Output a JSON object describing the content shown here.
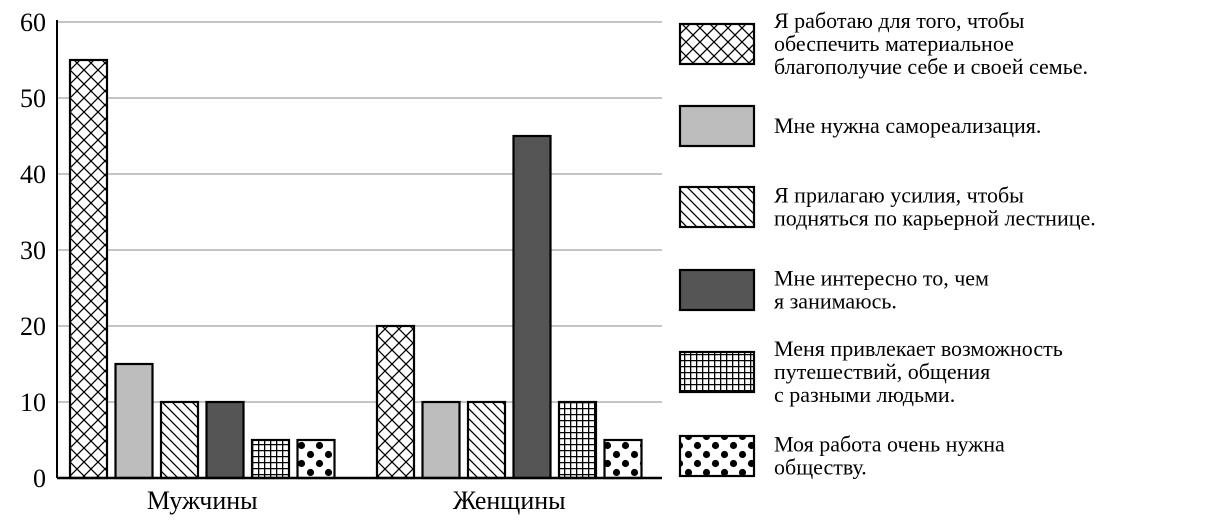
{
  "chart_data": {
    "type": "bar",
    "title": "",
    "xlabel": "",
    "ylabel": "",
    "ylim": [
      0,
      60
    ],
    "yticks": [
      0,
      10,
      20,
      30,
      40,
      50,
      60
    ],
    "grid": true,
    "legend_position": "right",
    "categories": [
      "Мужчины",
      "Женщины"
    ],
    "series": [
      {
        "name": "Я работаю для того, чтобы обеспечить материальное благополучие себе и своей семье.",
        "values": [
          55,
          20
        ],
        "pattern": "crosshatch",
        "color": "#ffffff"
      },
      {
        "name": "Мне нужна самореализация.",
        "values": [
          15,
          10
        ],
        "pattern": "solid",
        "color": "#bdbdbd"
      },
      {
        "name": "Я прилагаю усилия, чтобы подняться по карьерной лестнице.",
        "values": [
          10,
          10
        ],
        "pattern": "diagonal",
        "color": "#ffffff"
      },
      {
        "name": "Мне интересно то, чем я занимаюсь.",
        "values": [
          10,
          45
        ],
        "pattern": "solid",
        "color": "#555555"
      },
      {
        "name": "Меня привлекает возможность путешествий, общения с разными людьми.",
        "values": [
          5,
          10
        ],
        "pattern": "grid",
        "color": "#000000"
      },
      {
        "name": "Моя работа очень нужна обществу.",
        "values": [
          5,
          5
        ],
        "pattern": "dots",
        "color": "#ffffff"
      }
    ],
    "legend_lines": [
      [
        "Я работаю для того, чтобы",
        "обеспечить материальное",
        "благополучие себе и своей семье."
      ],
      [
        "Мне нужна самореализация."
      ],
      [
        "Я прилагаю усилия, чтобы",
        "подняться по карьерной лестнице."
      ],
      [
        "Мне интересно то, чем",
        "я занимаюсь."
      ],
      [
        "Меня привлекает возможность",
        "путешествий, общения",
        "с разными людьми."
      ],
      [
        "Моя работа очень нужна",
        "обществу."
      ]
    ]
  }
}
